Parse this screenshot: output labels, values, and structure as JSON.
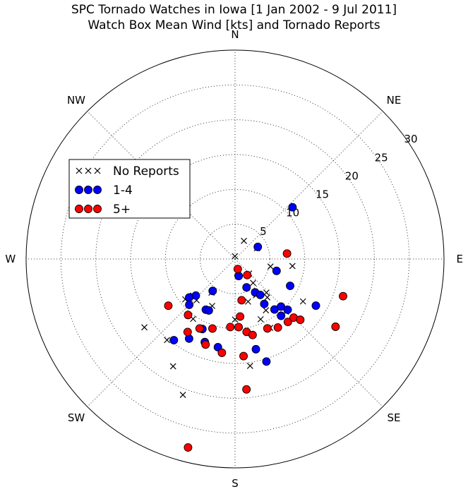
{
  "chart_data": {
    "type": "scatter",
    "subtype": "polar",
    "title": "SPC Tornado Watches in Iowa [1 Jan 2002 - 9 Jul 2011]",
    "subtitle": "Watch Box Mean Wind [kts] and Tornado Reports",
    "directions": [
      "N",
      "NE",
      "E",
      "SE",
      "S",
      "SW",
      "W",
      "NW"
    ],
    "radial_ticks": [
      5,
      10,
      15,
      20,
      25,
      30
    ],
    "rlim": [
      0,
      30
    ],
    "grid": true,
    "legend_placement": "upper-left",
    "series": [
      {
        "name": "No Reports",
        "marker": "x",
        "color": "#000000",
        "points": [
          {
            "angle": 357,
            "r": 0.4
          },
          {
            "angle": 26,
            "r": 2.9
          },
          {
            "angle": 64,
            "r": 3.5
          },
          {
            "angle": 102,
            "r": 5.2
          },
          {
            "angle": 97,
            "r": 8.3
          },
          {
            "angle": 136,
            "r": 2.9
          },
          {
            "angle": 172,
            "r": 2.0
          },
          {
            "angle": 143,
            "r": 4.3
          },
          {
            "angle": 150,
            "r": 6.0
          },
          {
            "angle": 137,
            "r": 6.6
          },
          {
            "angle": 140,
            "r": 7.2
          },
          {
            "angle": 149,
            "r": 8.6
          },
          {
            "angle": 157,
            "r": 9.4
          },
          {
            "angle": 163,
            "r": 6.4
          },
          {
            "angle": 180,
            "r": 8.7
          },
          {
            "angle": 206,
            "r": 7.5
          },
          {
            "angle": 215,
            "r": 5.9
          },
          {
            "angle": 223,
            "r": 8.1
          },
          {
            "angle": 229,
            "r": 8.0
          },
          {
            "angle": 215,
            "r": 10.5
          },
          {
            "angle": 231,
            "r": 9.2
          },
          {
            "angle": 220,
            "r": 15.2
          },
          {
            "angle": 210,
            "r": 17.8
          },
          {
            "angle": 233,
            "r": 16.3
          },
          {
            "angle": 172,
            "r": 15.5
          },
          {
            "angle": 122,
            "r": 11.5
          },
          {
            "angle": 136,
            "r": 10.5
          },
          {
            "angle": 153,
            "r": 11.1
          },
          {
            "angle": 201,
            "r": 20.9
          }
        ]
      },
      {
        "name": "1-4",
        "marker": "o",
        "color": "#0000ff",
        "points": [
          {
            "angle": 48,
            "r": 11.1
          },
          {
            "angle": 62,
            "r": 3.7
          },
          {
            "angle": 106,
            "r": 6.2
          },
          {
            "angle": 116,
            "r": 8.8
          },
          {
            "angle": 168,
            "r": 2.5
          },
          {
            "angle": 158,
            "r": 4.4
          },
          {
            "angle": 149,
            "r": 5.6
          },
          {
            "angle": 145,
            "r": 6.3
          },
          {
            "angle": 147,
            "r": 7.7
          },
          {
            "angle": 142,
            "r": 9.2
          },
          {
            "angle": 141,
            "r": 10.5
          },
          {
            "angle": 136,
            "r": 9.5
          },
          {
            "angle": 134,
            "r": 10.5
          },
          {
            "angle": 120,
            "r": 13.4
          },
          {
            "angle": 215,
            "r": 5.6
          },
          {
            "angle": 210,
            "r": 8.4
          },
          {
            "angle": 207,
            "r": 8.3
          },
          {
            "angle": 227,
            "r": 7.7
          },
          {
            "angle": 230,
            "r": 8.6
          },
          {
            "angle": 225,
            "r": 9.3
          },
          {
            "angle": 205,
            "r": 11.1
          },
          {
            "angle": 200,
            "r": 12.7
          },
          {
            "angle": 210,
            "r": 13.2
          },
          {
            "angle": 191,
            "r": 12.9
          },
          {
            "angle": 167,
            "r": 13.3
          },
          {
            "angle": 163,
            "r": 15.4
          },
          {
            "angle": 217,
            "r": 14.6
          }
        ]
      },
      {
        "name": "5+",
        "marker": "o",
        "color": "#ff0000",
        "points": [
          {
            "angle": 165,
            "r": 1.5
          },
          {
            "angle": 143,
            "r": 2.9
          },
          {
            "angle": 84,
            "r": 7.5
          },
          {
            "angle": 171,
            "r": 6.0
          },
          {
            "angle": 175,
            "r": 8.3
          },
          {
            "angle": 177,
            "r": 9.8
          },
          {
            "angle": 184,
            "r": 9.8
          },
          {
            "angle": 171,
            "r": 10.6
          },
          {
            "angle": 167,
            "r": 11.2
          },
          {
            "angle": 155,
            "r": 11.0
          },
          {
            "angle": 148,
            "r": 11.6
          },
          {
            "angle": 140,
            "r": 11.8
          },
          {
            "angle": 135,
            "r": 11.9
          },
          {
            "angle": 133,
            "r": 12.8
          },
          {
            "angle": 124,
            "r": 17.4
          },
          {
            "angle": 109,
            "r": 16.4
          },
          {
            "angle": 198,
            "r": 10.5
          },
          {
            "angle": 207,
            "r": 11.2
          },
          {
            "angle": 213,
            "r": 12.5
          },
          {
            "angle": 199,
            "r": 13.0
          },
          {
            "angle": 235,
            "r": 11.7
          },
          {
            "angle": 220,
            "r": 10.5
          },
          {
            "angle": 188,
            "r": 13.6
          },
          {
            "angle": 175,
            "r": 14.0
          },
          {
            "angle": 175,
            "r": 18.8
          },
          {
            "angle": 194,
            "r": 27.9
          }
        ]
      }
    ]
  }
}
